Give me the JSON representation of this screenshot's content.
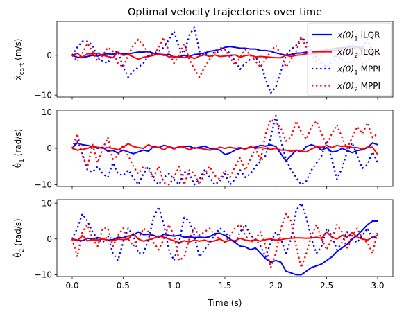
{
  "chart_data": {
    "type": "line",
    "title": "Optimal velocity trajectories over time",
    "xlabel": "Time (s)",
    "xlim": [
      -0.15,
      3.15
    ],
    "xticks": [
      0.0,
      0.5,
      1.0,
      1.5,
      2.0,
      2.5,
      3.0
    ],
    "xtick_labels": [
      "0.0",
      "0.5",
      "1.0",
      "1.5",
      "2.0",
      "2.5",
      "3.0"
    ],
    "x": [
      0.0,
      0.05,
      0.1,
      0.15,
      0.2,
      0.25,
      0.3,
      0.35,
      0.4,
      0.45,
      0.5,
      0.55,
      0.6,
      0.65,
      0.7,
      0.75,
      0.8,
      0.85,
      0.9,
      0.95,
      1.0,
      1.05,
      1.1,
      1.15,
      1.2,
      1.25,
      1.3,
      1.35,
      1.4,
      1.45,
      1.5,
      1.55,
      1.6,
      1.65,
      1.7,
      1.75,
      1.8,
      1.85,
      1.9,
      1.95,
      2.0,
      2.05,
      2.1,
      2.15,
      2.2,
      2.25,
      2.3,
      2.35,
      2.4,
      2.45,
      2.5,
      2.55,
      2.6,
      2.65,
      2.7,
      2.75,
      2.8,
      2.85,
      2.9,
      2.95,
      3.0
    ],
    "legend": {
      "placement": "top-right",
      "entries": [
        {
          "label": "x(0)",
          "sub": "1",
          "suffix": " iLQR",
          "color": "#0000ff",
          "style": "solid"
        },
        {
          "label": "x(0)",
          "sub": "2",
          "suffix": " iLQR",
          "color": "#ff0000",
          "style": "solid"
        },
        {
          "label": "x(0)",
          "sub": "1",
          "suffix": " MPPI",
          "color": "#0000ff",
          "style": "dotted"
        },
        {
          "label": "x(0)",
          "sub": "2",
          "suffix": " MPPI",
          "color": "#ff0000",
          "style": "dotted"
        }
      ]
    },
    "panels": [
      {
        "ylabel_main": "ẋ",
        "ylabel_sub": "cart",
        "ylabel_unit": " (m/s)",
        "ylim": [
          -10.5,
          8.5
        ],
        "yticks": [
          -10,
          0
        ],
        "ytick_labels": [
          "−10",
          "0"
        ],
        "series": [
          {
            "color": "#0000ff",
            "style": "solid",
            "values": [
              0.0,
              -0.5,
              -0.6,
              -0.3,
              0.0,
              -0.2,
              0.2,
              0.4,
              0.2,
              0.6,
              0.4,
              0.3,
              0.6,
              0.8,
              0.8,
              1.0,
              0.5,
              0.3,
              0.0,
              0.3,
              -0.5,
              -0.4,
              0.0,
              -0.3,
              0.2,
              0.3,
              0.6,
              1.0,
              1.2,
              1.5,
              2.0,
              2.2,
              2.0,
              1.8,
              1.8,
              1.6,
              1.6,
              1.2,
              1.2,
              1.0,
              0.6,
              0.3,
              0.0,
              0.2,
              0.5,
              0.6,
              0.8,
              0.6,
              0.9,
              1.2,
              1.4,
              1.6,
              1.8,
              1.9,
              2.0,
              2.2,
              2.1,
              1.8,
              1.2,
              0.6,
              0.0
            ]
          },
          {
            "color": "#ff0000",
            "style": "solid",
            "values": [
              0.0,
              0.5,
              -0.5,
              0.4,
              0.3,
              0.5,
              0.0,
              -0.3,
              -0.6,
              0.8,
              0.0,
              0.2,
              -0.4,
              -1.0,
              -0.5,
              -0.3,
              0.0,
              0.3,
              0.2,
              -0.4,
              -0.3,
              -0.5,
              -0.6,
              -0.3,
              -0.8,
              -0.2,
              0.1,
              -0.3,
              0.1,
              -0.3,
              -0.2,
              0.0,
              0.1,
              -0.5,
              -0.1,
              0.1,
              -0.4,
              -0.3,
              -0.4,
              -0.5,
              -0.6,
              -0.6,
              0.0,
              -0.3,
              0.0,
              0.1,
              0.4,
              0.3,
              0.5,
              0.8,
              1.0,
              1.2,
              1.4,
              1.6,
              1.6,
              1.8,
              1.6,
              1.7,
              1.4,
              0.8,
              0.5
            ]
          },
          {
            "color": "#0000ff",
            "style": "dotted",
            "values": [
              0.0,
              2.0,
              3.5,
              3.5,
              2.5,
              -0.5,
              -1.5,
              -2.0,
              0.5,
              1.0,
              -3.0,
              -5.5,
              -4.0,
              -3.0,
              -2.0,
              0.0,
              0.5,
              1.0,
              2.0,
              4.0,
              6.0,
              2.0,
              0.5,
              5.0,
              7.0,
              1.0,
              0.0,
              1.0,
              0.5,
              1.0,
              1.5,
              0.5,
              -1.5,
              -3.5,
              -2.0,
              -1.0,
              -0.5,
              -2.0,
              -6.0,
              -9.5,
              -8.0,
              -4.0,
              0.0,
              1.5,
              2.5,
              4.5,
              3.5,
              1.0,
              -0.5,
              -2.0,
              -3.0,
              -1.5,
              0.0,
              -1.0,
              -2.0,
              -1.5,
              0.0,
              2.0,
              4.0,
              1.0,
              0.0
            ]
          },
          {
            "color": "#ff0000",
            "style": "dotted",
            "values": [
              0.0,
              -1.5,
              0.5,
              3.0,
              1.0,
              -1.5,
              0.0,
              2.0,
              1.0,
              -2.0,
              -3.0,
              0.0,
              2.5,
              4.0,
              2.5,
              0.5,
              0.0,
              2.0,
              4.5,
              1.0,
              -2.0,
              0.0,
              3.0,
              -1.0,
              -3.5,
              -5.5,
              -3.0,
              -1.0,
              0.5,
              2.0,
              1.5,
              -0.5,
              -2.5,
              -0.5,
              1.5,
              0.0,
              -1.5,
              -3.0,
              -1.0,
              1.0,
              2.5,
              0.0,
              -3.0,
              -1.0,
              1.0,
              4.5,
              2.0,
              0.0,
              -1.5,
              0.0,
              2.0,
              0.5,
              -2.0,
              0.0,
              1.5,
              3.0,
              0.5,
              -2.0,
              -1.5,
              0.5,
              0.0
            ]
          }
        ]
      },
      {
        "ylabel_main": "θ̇",
        "ylabel_sub": "1",
        "ylabel_unit": " (rad/s)",
        "ylim": [
          -10.5,
          10.5
        ],
        "yticks": [
          -10,
          0,
          10
        ],
        "ytick_labels": [
          "−10",
          "0",
          "10"
        ],
        "series": [
          {
            "color": "#0000ff",
            "style": "solid",
            "values": [
              0.0,
              1.5,
              1.0,
              0.8,
              0.5,
              0.0,
              0.3,
              -0.8,
              -0.6,
              -1.3,
              -0.5,
              -1.0,
              -1.5,
              -1.0,
              -0.5,
              -0.8,
              0.5,
              0.2,
              0.8,
              0.5,
              0.0,
              0.4,
              0.5,
              0.6,
              0.0,
              0.3,
              0.6,
              0.0,
              -0.2,
              -0.5,
              -1.7,
              -1.3,
              -0.5,
              0.0,
              0.0,
              0.2,
              0.3,
              0.8,
              0.6,
              1.0,
              0.5,
              -1.5,
              -3.5,
              -2.0,
              -0.5,
              -1.0,
              0.5,
              1.0,
              0.5,
              -0.5,
              0.2,
              -1.0,
              -0.8,
              0.0,
              -0.6,
              -1.2,
              -0.6,
              -0.4,
              0.2,
              1.5,
              1.0
            ]
          },
          {
            "color": "#ff0000",
            "style": "solid",
            "values": [
              0.0,
              -0.5,
              -0.3,
              0.0,
              0.5,
              0.3,
              0.0,
              0.2,
              0.0,
              -0.4,
              0.3,
              1.3,
              0.5,
              0.2,
              0.0,
              1.0,
              0.2,
              0.3,
              -0.4,
              0.5,
              -0.2,
              0.5,
              0.3,
              -0.4,
              0.2,
              0.0,
              -0.2,
              -0.5,
              -0.3,
              0.3,
              0.0,
              0.3,
              0.0,
              0.2,
              -0.3,
              0.5,
              0.0,
              0.2,
              0.0,
              -0.3,
              0.0,
              -0.5,
              -0.5,
              -0.8,
              -0.5,
              -0.8,
              -1.0,
              -0.2,
              0.5,
              0.3,
              0.8,
              0.2,
              0.8,
              0.5,
              0.6,
              0.2,
              0.2,
              -0.2,
              0.3,
              0.3,
              -1.7
            ]
          },
          {
            "color": "#0000ff",
            "style": "dotted",
            "values": [
              0.0,
              2.0,
              -1.5,
              -6.0,
              -6.5,
              -5.0,
              -7.0,
              -8.0,
              -4.0,
              -7.0,
              -7.5,
              -6.0,
              -8.0,
              -10.0,
              -7.0,
              -5.0,
              -8.5,
              -10.0,
              -8.0,
              -7.0,
              -8.5,
              -10.0,
              -6.5,
              -7.0,
              -10.0,
              -8.5,
              -6.0,
              -8.0,
              -10.0,
              -9.0,
              -7.0,
              -10.0,
              -8.5,
              -6.0,
              -8.0,
              -7.0,
              -5.0,
              -3.5,
              -2.0,
              3.0,
              9.0,
              2.0,
              -3.0,
              -6.0,
              -8.0,
              -10.0,
              -9.0,
              -6.0,
              -4.0,
              -2.0,
              2.0,
              -3.0,
              -8.5,
              -5.5,
              -1.0,
              1.5,
              -2.0,
              -5.5,
              -4.5,
              -1.0,
              -4.0
            ]
          },
          {
            "color": "#ff0000",
            "style": "dotted",
            "values": [
              0.0,
              4.0,
              -2.0,
              -5.0,
              1.0,
              -4.0,
              0.0,
              3.0,
              -3.0,
              -2.0,
              1.0,
              -2.0,
              -5.0,
              -7.0,
              -5.0,
              -6.0,
              -8.0,
              -5.0,
              -9.5,
              -10.0,
              -8.0,
              -5.0,
              -10.0,
              -6.0,
              -7.0,
              -10.0,
              -7.0,
              -5.0,
              -7.5,
              -8.5,
              -6.0,
              -8.0,
              -5.0,
              -2.5,
              -6.0,
              -3.0,
              0.0,
              -3.5,
              4.0,
              8.0,
              7.0,
              5.5,
              2.0,
              3.0,
              7.5,
              4.5,
              2.5,
              6.0,
              7.5,
              4.0,
              1.0,
              4.0,
              6.5,
              3.0,
              0.0,
              3.0,
              6.0,
              4.0,
              7.0,
              3.0,
              4.0
            ]
          }
        ]
      },
      {
        "ylabel_main": "θ̇",
        "ylabel_sub": "2",
        "ylabel_unit": " (rad/s)",
        "ylim": [
          -10.5,
          11.0
        ],
        "yticks": [
          -10,
          0,
          10
        ],
        "ytick_labels": [
          "−10",
          "0",
          "10"
        ],
        "series": [
          {
            "color": "#0000ff",
            "style": "solid",
            "values": [
              0.0,
              -0.3,
              -0.5,
              0.2,
              0.0,
              0.4,
              0.0,
              -0.3,
              -0.2,
              0.5,
              0.3,
              0.8,
              1.0,
              2.0,
              1.2,
              1.3,
              1.0,
              0.5,
              1.3,
              1.0,
              0.8,
              1.0,
              0.5,
              0.6,
              0.4,
              0.5,
              0.4,
              0.6,
              1.5,
              1.6,
              1.0,
              0.0,
              -1.0,
              -2.0,
              -2.2,
              -3.0,
              -2.5,
              -4.0,
              -5.5,
              -6.5,
              -6.0,
              -6.5,
              -9.0,
              -9.5,
              -10.0,
              -10.0,
              -9.0,
              -8.0,
              -7.5,
              -7.0,
              -6.0,
              -5.0,
              -3.5,
              -2.5,
              -1.5,
              0.0,
              1.0,
              2.5,
              4.0,
              5.0,
              5.0
            ]
          },
          {
            "color": "#ff0000",
            "style": "solid",
            "values": [
              0.0,
              -0.5,
              1.0,
              -0.5,
              -0.2,
              -0.3,
              0.0,
              -0.3,
              -0.5,
              0.0,
              -0.2,
              0.0,
              1.5,
              0.0,
              -0.6,
              -0.2,
              0.2,
              0.8,
              0.5,
              0.0,
              -0.5,
              -1.0,
              -0.5,
              -0.8,
              -0.3,
              -0.6,
              -0.3,
              -0.8,
              -0.5,
              0.0,
              -0.8,
              -0.3,
              -0.5,
              0.2,
              -0.3,
              -0.5,
              -0.2,
              -0.6,
              -0.2,
              0.0,
              -0.3,
              -0.2,
              0.1,
              0.2,
              0.3,
              0.3,
              0.2,
              0.3,
              0.5,
              0.2,
              2.0,
              0.5,
              0.0,
              1.0,
              0.5,
              1.8,
              0.5,
              0.0,
              -0.3,
              0.5,
              1.0
            ]
          },
          {
            "color": "#0000ff",
            "style": "dotted",
            "values": [
              0.0,
              3.0,
              7.0,
              5.0,
              2.0,
              0.0,
              -1.0,
              1.0,
              -4.0,
              -6.0,
              -1.0,
              3.0,
              1.0,
              -4.0,
              -4.0,
              0.0,
              6.0,
              9.0,
              4.0,
              -3.0,
              -6.0,
              -1.0,
              6.0,
              5.0,
              1.0,
              -5.0,
              -3.0,
              -1.0,
              1.0,
              3.0,
              2.0,
              0.0,
              -1.0,
              2.0,
              4.0,
              1.0,
              0.0,
              -2.0,
              -5.0,
              -1.0,
              2.0,
              0.0,
              -4.0,
              0.0,
              8.0,
              10.0,
              6.0,
              0.0,
              -4.0,
              -2.0,
              3.0,
              1.0,
              -3.0,
              -1.0,
              2.0,
              0.0,
              -1.0,
              1.0,
              3.0,
              0.0,
              1.0
            ]
          },
          {
            "color": "#ff0000",
            "style": "dotted",
            "values": [
              0.0,
              -5.0,
              2.0,
              4.0,
              0.0,
              -2.0,
              3.0,
              3.0,
              -2.0,
              1.0,
              3.0,
              0.0,
              -2.0,
              0.0,
              3.0,
              2.0,
              -1.0,
              -3.0,
              0.0,
              4.0,
              1.0,
              -6.0,
              -5.0,
              0.0,
              3.0,
              1.0,
              2.0,
              3.0,
              1.0,
              0.0,
              -1.0,
              1.0,
              3.0,
              4.0,
              1.0,
              -1.0,
              0.0,
              2.0,
              -2.0,
              -8.0,
              -4.0,
              3.0,
              7.0,
              5.0,
              -2.0,
              -8.0,
              -4.0,
              1.0,
              4.0,
              0.0,
              -3.0,
              0.0,
              4.0,
              2.0,
              -3.0,
              1.0,
              3.0,
              0.0,
              -1.0,
              -4.0,
              2.0
            ]
          }
        ]
      }
    ]
  }
}
